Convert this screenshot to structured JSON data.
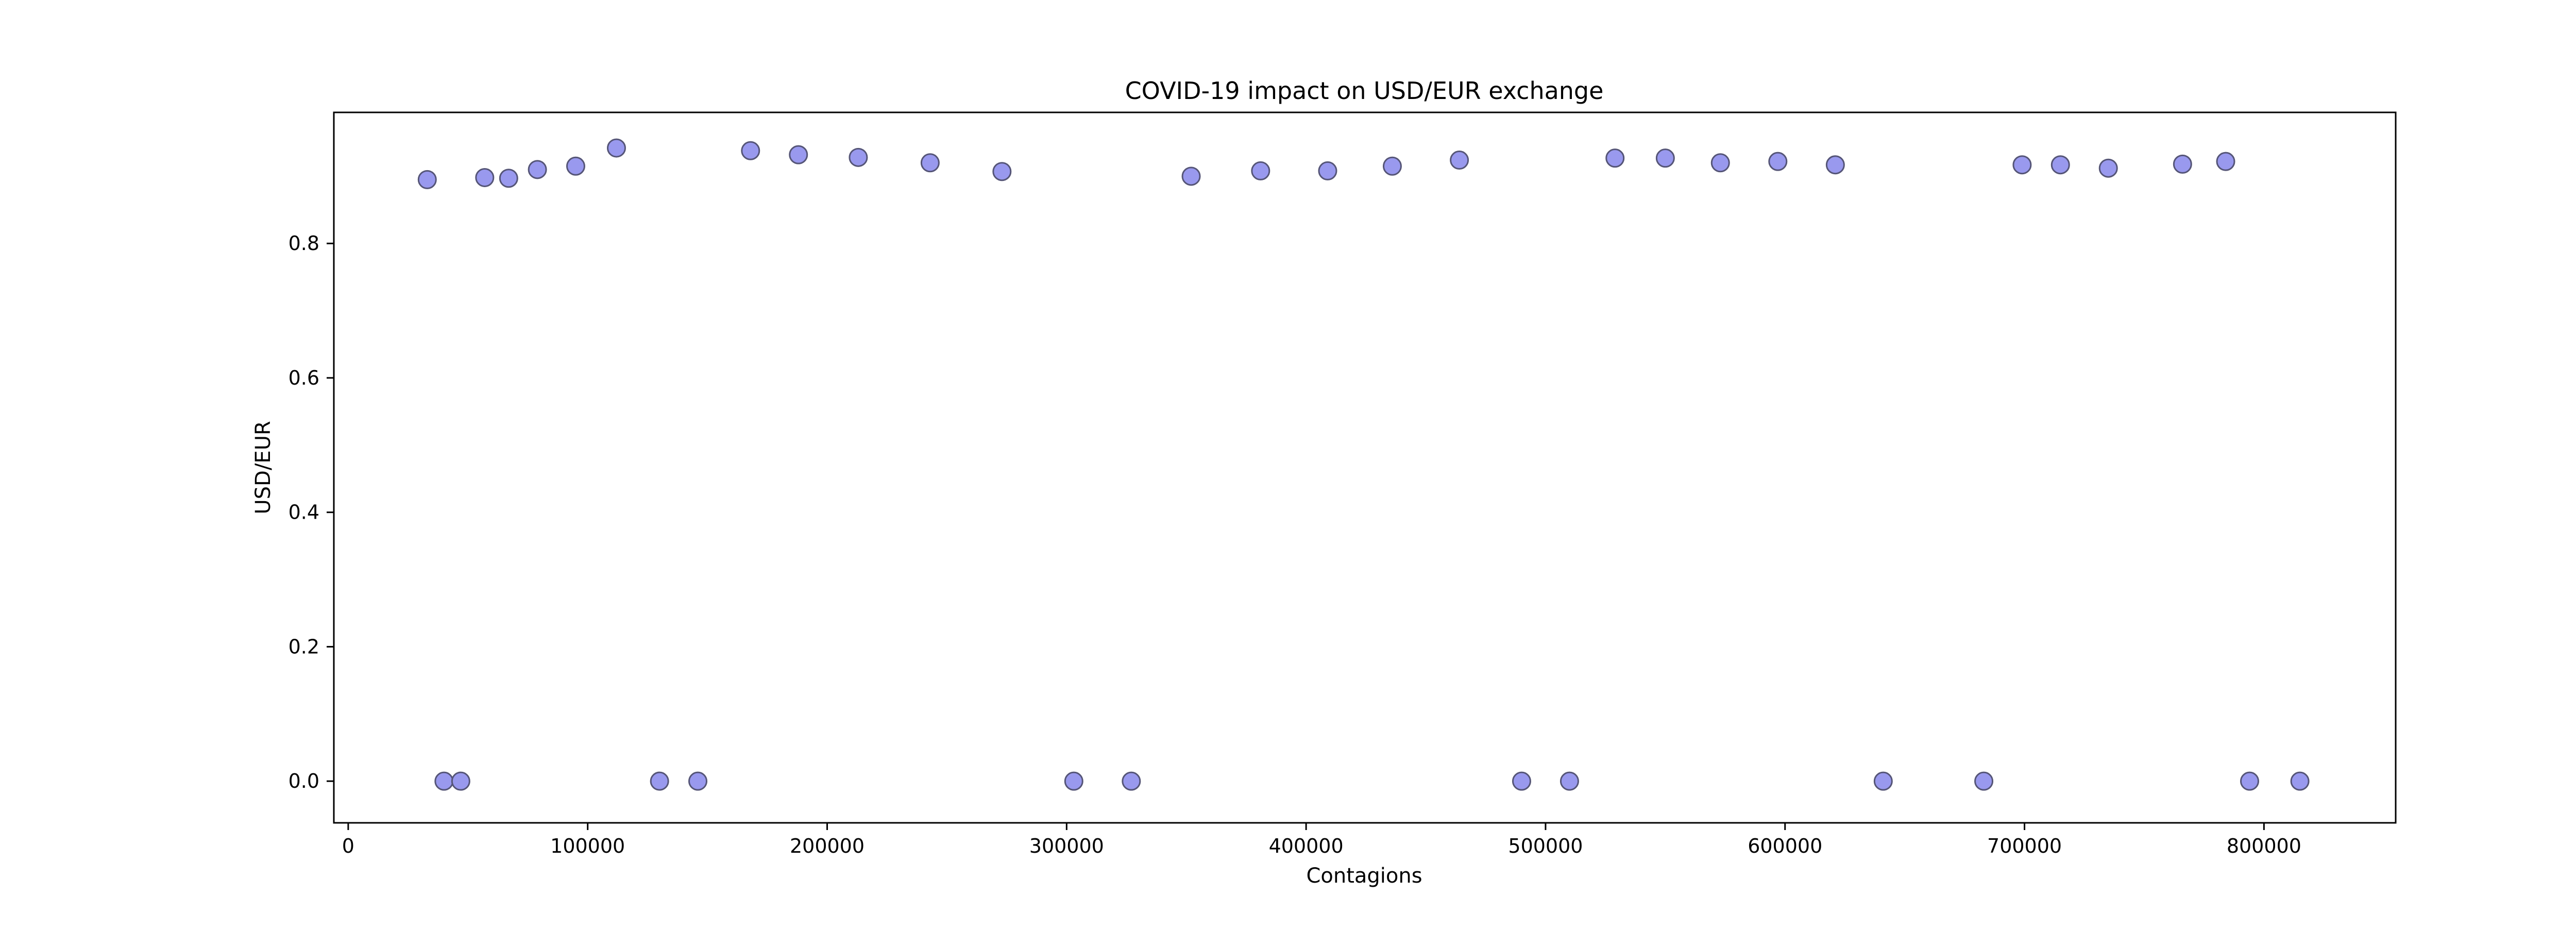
{
  "chart_data": {
    "type": "scatter",
    "title": "COVID-19 impact on USD/EUR exchange",
    "xlabel": "Contagions",
    "ylabel": "USD/EUR",
    "xlim": [
      -6000,
      855000
    ],
    "ylim": [
      -0.062,
      0.995
    ],
    "grid": false,
    "legend": "none",
    "marker_color": "#9999ee",
    "marker_edge_color": "#555577",
    "x_ticks": [
      0,
      100000,
      200000,
      300000,
      400000,
      500000,
      600000,
      700000,
      800000
    ],
    "x_tick_labels": [
      "0",
      "100000",
      "200000",
      "300000",
      "400000",
      "500000",
      "600000",
      "700000",
      "800000"
    ],
    "y_ticks": [
      0.0,
      0.2,
      0.4,
      0.6,
      0.8
    ],
    "y_tick_labels": [
      "0.0",
      "0.2",
      "0.4",
      "0.6",
      "0.8"
    ],
    "points": [
      {
        "x": 33000,
        "y": 0.895
      },
      {
        "x": 40000,
        "y": 0.0
      },
      {
        "x": 47000,
        "y": 0.0
      },
      {
        "x": 57000,
        "y": 0.898
      },
      {
        "x": 67000,
        "y": 0.897
      },
      {
        "x": 79000,
        "y": 0.91
      },
      {
        "x": 95000,
        "y": 0.915
      },
      {
        "x": 112000,
        "y": 0.942
      },
      {
        "x": 130000,
        "y": 0.0
      },
      {
        "x": 146000,
        "y": 0.0
      },
      {
        "x": 168000,
        "y": 0.938
      },
      {
        "x": 188000,
        "y": 0.932
      },
      {
        "x": 213000,
        "y": 0.928
      },
      {
        "x": 243000,
        "y": 0.92
      },
      {
        "x": 273000,
        "y": 0.907
      },
      {
        "x": 303000,
        "y": 0.0
      },
      {
        "x": 327000,
        "y": 0.0
      },
      {
        "x": 352000,
        "y": 0.9
      },
      {
        "x": 381000,
        "y": 0.908
      },
      {
        "x": 409000,
        "y": 0.908
      },
      {
        "x": 436000,
        "y": 0.915
      },
      {
        "x": 464000,
        "y": 0.924
      },
      {
        "x": 490000,
        "y": 0.0
      },
      {
        "x": 510000,
        "y": 0.0
      },
      {
        "x": 529000,
        "y": 0.927
      },
      {
        "x": 550000,
        "y": 0.927
      },
      {
        "x": 573000,
        "y": 0.92
      },
      {
        "x": 597000,
        "y": 0.922
      },
      {
        "x": 621000,
        "y": 0.917
      },
      {
        "x": 641000,
        "y": 0.0
      },
      {
        "x": 683000,
        "y": 0.0
      },
      {
        "x": 699000,
        "y": 0.917
      },
      {
        "x": 715000,
        "y": 0.917
      },
      {
        "x": 735000,
        "y": 0.912
      },
      {
        "x": 766000,
        "y": 0.918
      },
      {
        "x": 784000,
        "y": 0.922
      },
      {
        "x": 794000,
        "y": 0.0
      },
      {
        "x": 815000,
        "y": 0.0
      }
    ]
  }
}
